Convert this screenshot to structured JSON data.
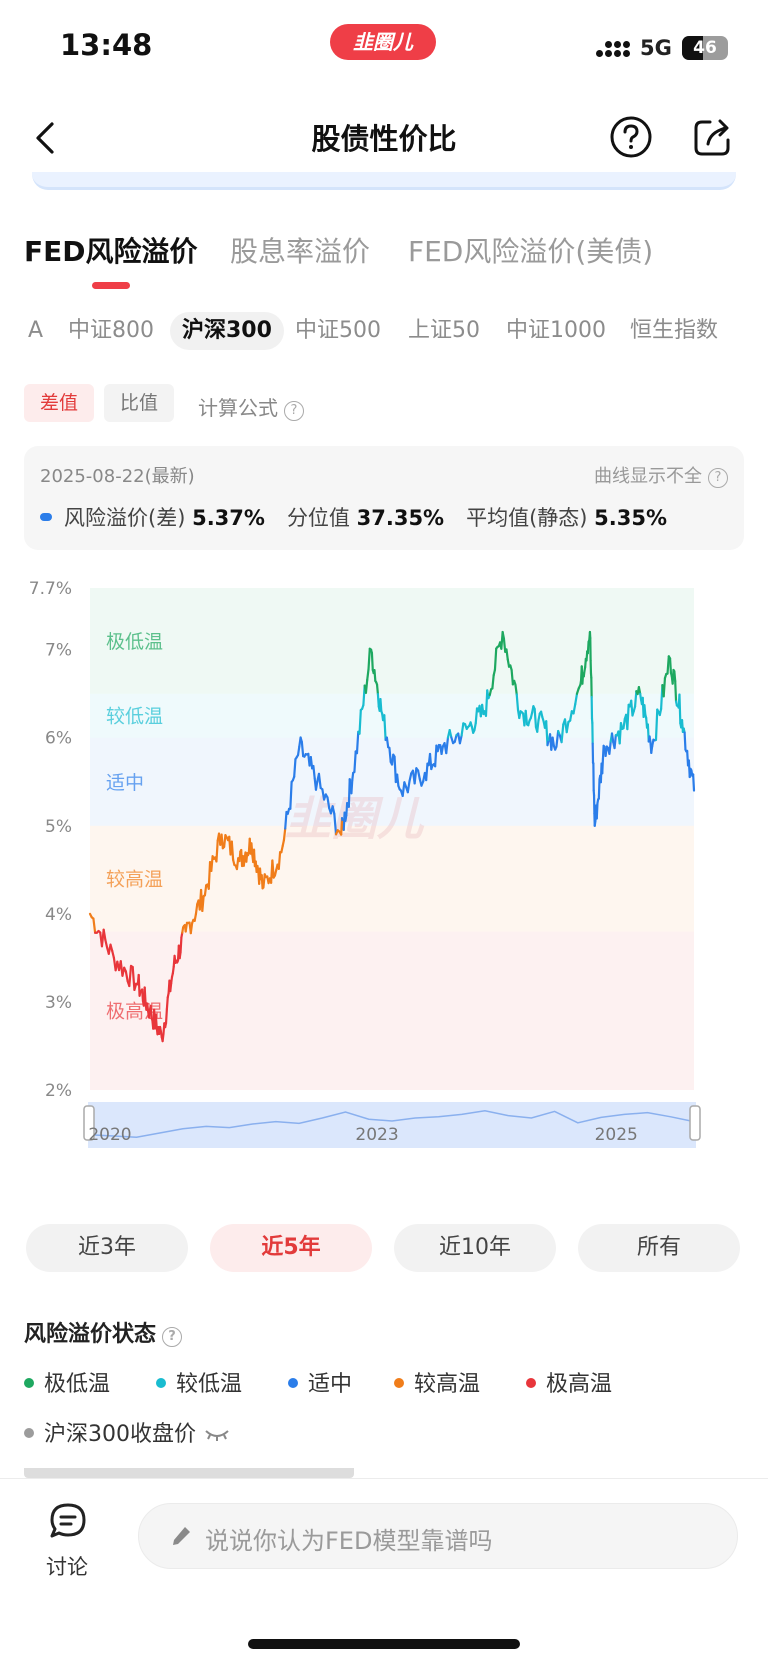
{
  "status_bar": {
    "time": "13:48",
    "app_badge": "韭圈儿",
    "network": "5G",
    "battery": "46",
    "battery_level": 0.46
  },
  "nav": {
    "title": "股债性价比"
  },
  "main_tabs": [
    {
      "label": "FED风险溢价",
      "active": true
    },
    {
      "label": "股息率溢价",
      "active": false
    },
    {
      "label": "FED风险溢价(美债)",
      "active": false
    }
  ],
  "index_tabs": [
    {
      "label": "A",
      "active": false
    },
    {
      "label": "中证800",
      "active": false
    },
    {
      "label": "沪深300",
      "active": true
    },
    {
      "label": "中证500",
      "active": false
    },
    {
      "label": "上证50",
      "active": false
    },
    {
      "label": "中证1000",
      "active": false
    },
    {
      "label": "恒生指数",
      "active": false
    }
  ],
  "mode": {
    "diff": "差值",
    "ratio": "比值",
    "formula": "计算公式"
  },
  "info": {
    "date": "2025-08-22(最新)",
    "note": "曲线显示不全",
    "premium_label": "风险溢价(差)",
    "premium_value": "5.37%",
    "percentile_label": "分位值",
    "percentile_value": "37.35%",
    "average_label": "平均值(静态)",
    "average_value": "5.35%"
  },
  "chart_data": {
    "type": "line",
    "ylabel": "",
    "ylim": [
      2,
      7.7
    ],
    "y_ticks": [
      "7.7%",
      "7%",
      "6%",
      "5%",
      "4%",
      "3%",
      "2%"
    ],
    "x_ticks": [
      "2020",
      "2023",
      "2025"
    ],
    "watermark": "韭圈儿",
    "zones": [
      {
        "label": "极低温",
        "from": 6.5,
        "to": 7.7,
        "color": "#1ea860"
      },
      {
        "label": "较低温",
        "from": 6.0,
        "to": 6.5,
        "color": "#19bcd0"
      },
      {
        "label": "适中",
        "from": 5.0,
        "to": 6.0,
        "color": "#2b7de9"
      },
      {
        "label": "较高温",
        "from": 3.8,
        "to": 5.0,
        "color": "#f07d1a"
      },
      {
        "label": "极高温",
        "from": 2.0,
        "to": 3.8,
        "color": "#e8363b"
      }
    ],
    "series": [
      {
        "x": [
          2020.6,
          2020.8,
          2021.0,
          2021.1,
          2021.2,
          2021.3,
          2021.4,
          2021.55,
          2021.7,
          2021.85,
          2021.95,
          2022.05,
          2022.2,
          2022.35,
          2022.5,
          2022.7,
          2022.8,
          2022.95,
          2023.05,
          2023.2,
          2023.4,
          2023.55,
          2023.75,
          2023.9,
          2024.05,
          2024.2,
          2024.35,
          2024.5,
          2024.7,
          2024.78,
          2024.82,
          2024.9,
          2025.05,
          2025.2,
          2025.3,
          2025.45,
          2025.55,
          2025.65
        ],
        "values": [
          4.0,
          3.5,
          3.2,
          2.9,
          2.6,
          3.4,
          3.8,
          4.2,
          4.9,
          4.6,
          4.8,
          4.3,
          4.7,
          5.9,
          5.5,
          4.9,
          5.6,
          7.0,
          6.2,
          5.4,
          5.6,
          5.9,
          6.1,
          6.3,
          7.2,
          6.3,
          6.2,
          5.9,
          6.6,
          7.2,
          5.0,
          5.9,
          6.1,
          6.5,
          5.9,
          6.9,
          6.2,
          5.4
        ]
      }
    ],
    "navigator_values": [
      3.2,
      3.0,
      2.8,
      3.5,
      4.2,
      4.6,
      4.4,
      5.0,
      5.4,
      5.1,
      6.0,
      7.0,
      5.8,
      5.5,
      6.0,
      6.2,
      6.6,
      7.2,
      6.4,
      6.0,
      7.1,
      5.2,
      6.1,
      6.6,
      6.9,
      6.2,
      5.4
    ]
  },
  "periods": [
    {
      "label": "近3年",
      "active": false
    },
    {
      "label": "近5年",
      "active": true
    },
    {
      "label": "近10年",
      "active": false
    },
    {
      "label": "所有",
      "active": false
    }
  ],
  "status_section": {
    "title": "风险溢价状态",
    "legend": [
      {
        "label": "极低温",
        "color": "#1ea860"
      },
      {
        "label": "较低温",
        "color": "#19bcd0"
      },
      {
        "label": "适中",
        "color": "#2b7de9"
      },
      {
        "label": "较高温",
        "color": "#f07d1a"
      },
      {
        "label": "极高温",
        "color": "#e8363b"
      }
    ],
    "close_price": {
      "label": "沪深300收盘价",
      "color": "#9c9c9c"
    }
  },
  "bottom_bar": {
    "discuss": "讨论",
    "comment_placeholder": "说说你认为FED模型靠谱吗"
  }
}
